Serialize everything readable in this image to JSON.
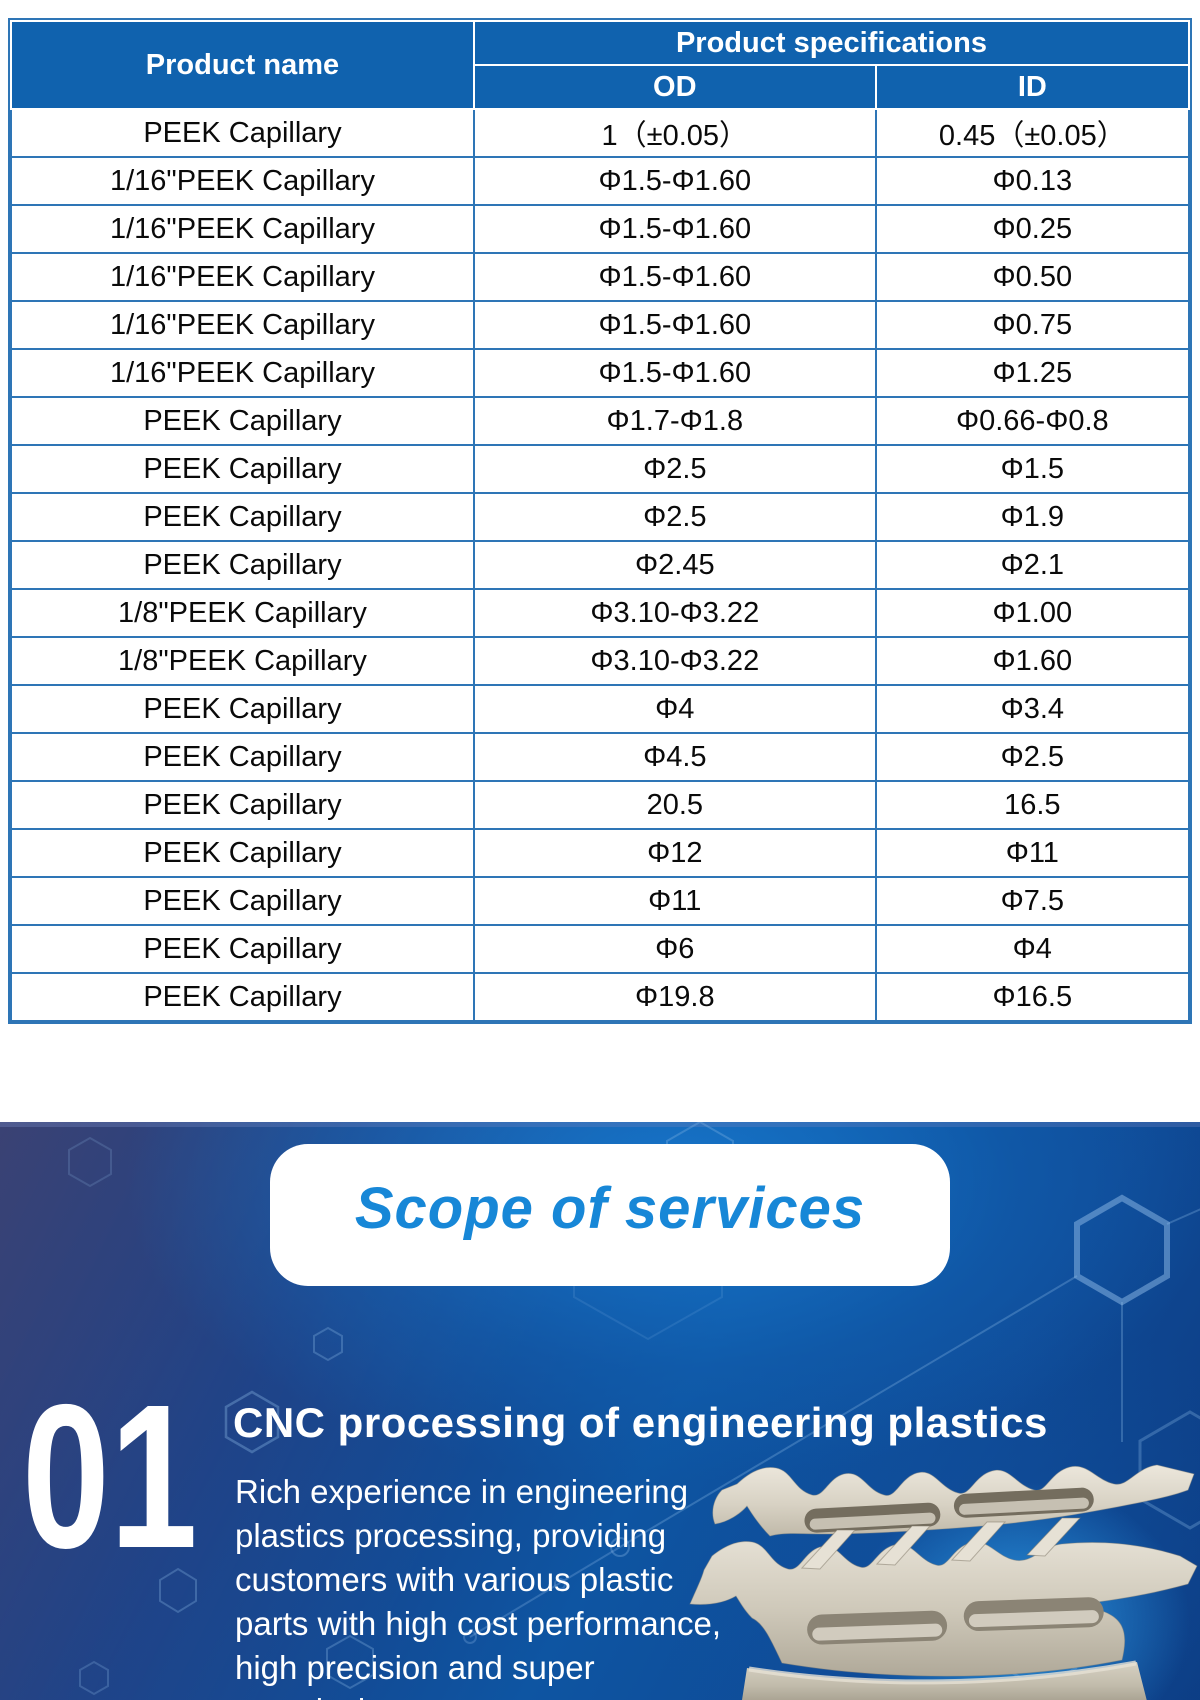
{
  "table": {
    "header": {
      "product_name": "Product name",
      "product_specifications": "Product specifications",
      "od": "OD",
      "id": "ID"
    },
    "rows": [
      [
        "PEEK Capillary",
        "1（±0.05）",
        "0.45（±0.05）"
      ],
      [
        "1/16\"PEEK Capillary",
        "Φ1.5-Φ1.60",
        "Φ0.13"
      ],
      [
        "1/16\"PEEK Capillary",
        "Φ1.5-Φ1.60",
        "Φ0.25"
      ],
      [
        "1/16\"PEEK Capillary",
        "Φ1.5-Φ1.60",
        "Φ0.50"
      ],
      [
        "1/16\"PEEK Capillary",
        "Φ1.5-Φ1.60",
        "Φ0.75"
      ],
      [
        "1/16\"PEEK Capillary",
        "Φ1.5-Φ1.60",
        "Φ1.25"
      ],
      [
        "PEEK Capillary",
        "Φ1.7-Φ1.8",
        "Φ0.66-Φ0.8"
      ],
      [
        "PEEK Capillary",
        "Φ2.5",
        "Φ1.5"
      ],
      [
        "PEEK Capillary",
        "Φ2.5",
        "Φ1.9"
      ],
      [
        "PEEK Capillary",
        "Φ2.45",
        "Φ2.1"
      ],
      [
        "1/8\"PEEK Capillary",
        "Φ3.10-Φ3.22",
        "Φ1.00"
      ],
      [
        "1/8\"PEEK Capillary",
        "Φ3.10-Φ3.22",
        "Φ1.60"
      ],
      [
        "PEEK Capillary",
        "Φ4",
        "Φ3.4"
      ],
      [
        "PEEK Capillary",
        "Φ4.5",
        "Φ2.5"
      ],
      [
        "PEEK Capillary",
        "20.5",
        "16.5"
      ],
      [
        "PEEK Capillary",
        "Φ12",
        "Φ11"
      ],
      [
        "PEEK Capillary",
        "Φ11",
        "Φ7.5"
      ],
      [
        "PEEK Capillary",
        "Φ6",
        "Φ4"
      ],
      [
        "PEEK Capillary",
        "Φ19.8",
        "Φ16.5"
      ]
    ]
  },
  "services_section": {
    "title": "Scope of services",
    "items": [
      {
        "number": "01",
        "heading": "CNC processing of engineering plastics",
        "description": "Rich experience in engineering plastics processing, providing customers with various plastic parts with high cost performance, high precision and super complexity."
      }
    ],
    "illustration": "cnc-machined-plastic-part-photo"
  },
  "colors": {
    "table_header_blue": "#1062ae",
    "table_border_blue": "#2e75b6",
    "section_title_blue": "#1787d7",
    "section_bg_dark": "#272f66",
    "section_bg_bright": "#1173c8",
    "text_white": "#ffffff",
    "part_beige": "#d6d0c2"
  }
}
